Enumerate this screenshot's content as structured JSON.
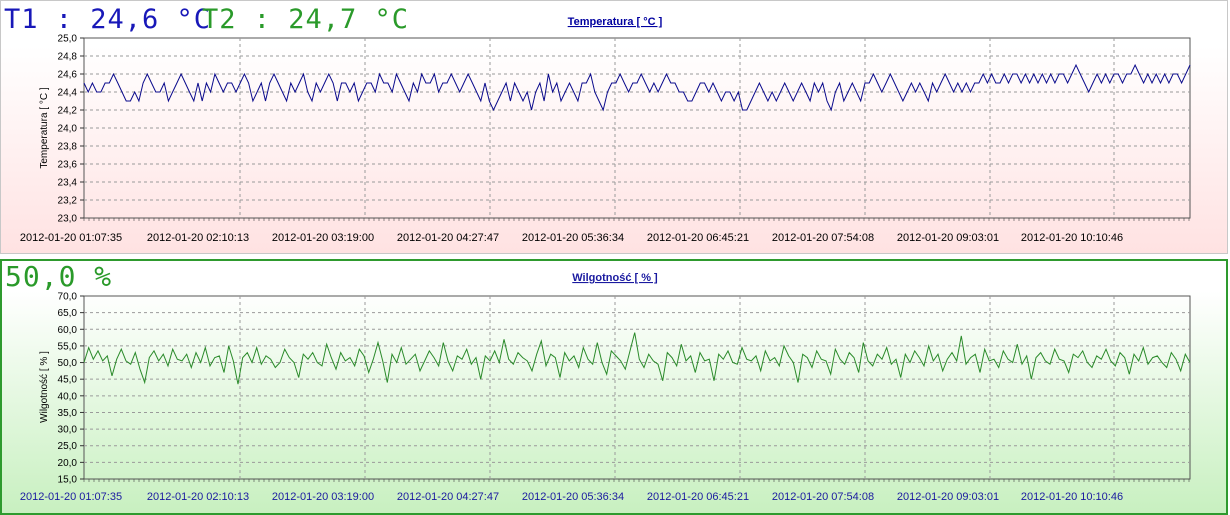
{
  "readouts": {
    "t1": "T1 : 24,6 °C",
    "t2": "T2 : 24,7 °C",
    "rh": "50,0 %"
  },
  "colors": {
    "t1": "#1818b8",
    "t2": "#2a9a2a",
    "humidity": "#2a9a2a",
    "temp_line": "#0a0a8c",
    "hum_line": "#2a8a2a",
    "temp_title": "#0000a0",
    "hum_title": "#1a1aa0",
    "temp_xticks": "#000000",
    "hum_xticks": "#1a1aa0"
  },
  "chart_data": [
    {
      "type": "line",
      "title": "Temperatura [ °C ]",
      "ylabel": "Temperatura [ °C ]",
      "xlabel": "",
      "ylim": [
        23.0,
        25.0
      ],
      "ytick_labels": [
        "25,0",
        "24,8",
        "24,6",
        "24,4",
        "24,2",
        "24,0",
        "23,8",
        "23,6",
        "23,4",
        "23,2",
        "23,0"
      ],
      "xtick_labels": [
        "2012-01-20 01:07:35",
        "2012-01-20 02:10:13",
        "2012-01-20 03:19:00",
        "2012-01-20 04:27:47",
        "2012-01-20 05:36:34",
        "2012-01-20 06:45:21",
        "2012-01-20 07:54:08",
        "2012-01-20 09:03:01",
        "2012-01-20 10:10:46"
      ],
      "grid": true,
      "series": [
        {
          "values": [
            24.5,
            24.4,
            24.5,
            24.4,
            24.4,
            24.5,
            24.5,
            24.6,
            24.5,
            24.4,
            24.3,
            24.3,
            24.4,
            24.3,
            24.5,
            24.6,
            24.5,
            24.4,
            24.4,
            24.5,
            24.3,
            24.4,
            24.5,
            24.6,
            24.5,
            24.4,
            24.3,
            24.5,
            24.3,
            24.5,
            24.4,
            24.6,
            24.5,
            24.4,
            24.5,
            24.5,
            24.4,
            24.5,
            24.6,
            24.5,
            24.3,
            24.4,
            24.5,
            24.3,
            24.5,
            24.6,
            24.5,
            24.4,
            24.3,
            24.5,
            24.4,
            24.5,
            24.6,
            24.4,
            24.3,
            24.5,
            24.4,
            24.5,
            24.6,
            24.5,
            24.3,
            24.5,
            24.5,
            24.4,
            24.5,
            24.3,
            24.4,
            24.5,
            24.5,
            24.4,
            24.6,
            24.5,
            24.5,
            24.4,
            24.6,
            24.5,
            24.4,
            24.3,
            24.5,
            24.4,
            24.6,
            24.5,
            24.5,
            24.6,
            24.4,
            24.5,
            24.5,
            24.6,
            24.5,
            24.4,
            24.5,
            24.6,
            24.5,
            24.4,
            24.3,
            24.5,
            24.3,
            24.2,
            24.3,
            24.4,
            24.5,
            24.3,
            24.5,
            24.4,
            24.3,
            24.4,
            24.2,
            24.4,
            24.5,
            24.3,
            24.6,
            24.4,
            24.5,
            24.3,
            24.4,
            24.5,
            24.4,
            24.3,
            24.5,
            24.5,
            24.6,
            24.4,
            24.3,
            24.2,
            24.4,
            24.5,
            24.5,
            24.6,
            24.5,
            24.4,
            24.5,
            24.5,
            24.6,
            24.5,
            24.4,
            24.5,
            24.4,
            24.5,
            24.6,
            24.5,
            24.5,
            24.4,
            24.4,
            24.3,
            24.3,
            24.4,
            24.5,
            24.5,
            24.4,
            24.5,
            24.4,
            24.3,
            24.4,
            24.4,
            24.3,
            24.4,
            24.2,
            24.2,
            24.3,
            24.4,
            24.5,
            24.4,
            24.3,
            24.4,
            24.3,
            24.4,
            24.5,
            24.4,
            24.3,
            24.4,
            24.5,
            24.4,
            24.3,
            24.5,
            24.4,
            24.5,
            24.3,
            24.2,
            24.4,
            24.5,
            24.3,
            24.4,
            24.5,
            24.4,
            24.3,
            24.5,
            24.5,
            24.6,
            24.5,
            24.4,
            24.5,
            24.6,
            24.5,
            24.4,
            24.3,
            24.4,
            24.5,
            24.4,
            24.5,
            24.4,
            24.3,
            24.5,
            24.4,
            24.5,
            24.6,
            24.5,
            24.4,
            24.5,
            24.4,
            24.5,
            24.4,
            24.5,
            24.5,
            24.6,
            24.5,
            24.6,
            24.5,
            24.5,
            24.6,
            24.5,
            24.6,
            24.6,
            24.5,
            24.6,
            24.5,
            24.6,
            24.5,
            24.6,
            24.5,
            24.6,
            24.5,
            24.6,
            24.6,
            24.5,
            24.6,
            24.7,
            24.6,
            24.5,
            24.4,
            24.5,
            24.6,
            24.5,
            24.6,
            24.5,
            24.6,
            24.6,
            24.5,
            24.6,
            24.6,
            24.7,
            24.6,
            24.5,
            24.6,
            24.5,
            24.6,
            24.5,
            24.6,
            24.5,
            24.6,
            24.6,
            24.5,
            24.6,
            24.7
          ]
        }
      ]
    },
    {
      "type": "line",
      "title": "Wilgotność [ % ]",
      "ylabel": "Wilgotność [ % ]",
      "xlabel": "",
      "ylim": [
        15.0,
        70.0
      ],
      "ytick_labels": [
        "70,0",
        "65,0",
        "60,0",
        "55,0",
        "50,0",
        "45,0",
        "40,0",
        "35,0",
        "30,0",
        "25,0",
        "20,0",
        "15,0"
      ],
      "xtick_labels": [
        "2012-01-20 01:07:35",
        "2012-01-20 02:10:13",
        "2012-01-20 03:19:00",
        "2012-01-20 04:27:47",
        "2012-01-20 05:36:34",
        "2012-01-20 06:45:21",
        "2012-01-20 07:54:08",
        "2012-01-20 09:03:01",
        "2012-01-20 10:10:46"
      ],
      "grid": true,
      "series": [
        {
          "values": [
            50.0,
            54.5,
            51.0,
            53.5,
            50.5,
            52.0,
            46.0,
            51.0,
            54.0,
            50.5,
            49.5,
            53.0,
            48.0,
            44.0,
            51.5,
            53.5,
            50.5,
            52.5,
            49.0,
            54.0,
            51.0,
            50.5,
            52.5,
            48.5,
            53.0,
            50.0,
            54.5,
            49.0,
            51.5,
            52.0,
            47.0,
            55.0,
            50.5,
            43.5,
            51.5,
            53.0,
            50.0,
            54.5,
            49.5,
            52.0,
            51.0,
            48.5,
            50.0,
            54.0,
            51.5,
            50.0,
            45.5,
            52.5,
            51.0,
            53.0,
            50.0,
            49.0,
            55.5,
            51.5,
            48.0,
            53.0,
            50.5,
            51.5,
            49.0,
            54.0,
            52.0,
            47.0,
            51.0,
            56.0,
            50.5,
            44.0,
            52.5,
            50.0,
            54.5,
            49.5,
            51.0,
            52.5,
            47.5,
            50.5,
            53.5,
            51.5,
            49.0,
            56.0,
            50.5,
            47.5,
            52.0,
            51.0,
            54.0,
            49.5,
            51.5,
            45.0,
            52.0,
            50.5,
            53.5,
            50.0,
            57.0,
            51.0,
            49.5,
            53.0,
            51.5,
            50.5,
            47.5,
            52.5,
            56.5,
            49.0,
            52.5,
            51.5,
            45.5,
            53.0,
            50.5,
            52.0,
            48.5,
            54.5,
            51.0,
            49.5,
            56.0,
            50.0,
            46.5,
            53.5,
            52.0,
            50.5,
            48.0,
            53.5,
            59.0,
            51.0,
            48.5,
            52.5,
            50.5,
            49.5,
            44.5,
            53.0,
            51.5,
            49.0,
            55.5,
            50.5,
            52.0,
            47.0,
            53.0,
            50.5,
            51.0,
            44.5,
            52.5,
            51.0,
            53.5,
            50.0,
            49.5,
            54.5,
            51.0,
            50.5,
            52.0,
            47.5,
            53.5,
            50.5,
            51.5,
            49.0,
            55.0,
            52.0,
            50.0,
            44.0,
            52.5,
            51.5,
            48.5,
            53.5,
            51.0,
            50.5,
            46.5,
            54.0,
            51.0,
            49.5,
            53.0,
            51.5,
            47.0,
            56.0,
            50.5,
            49.0,
            52.5,
            51.0,
            54.5,
            49.5,
            51.0,
            45.5,
            52.5,
            50.0,
            53.5,
            51.5,
            49.0,
            55.0,
            50.5,
            52.5,
            47.5,
            51.0,
            53.0,
            50.5,
            58.0,
            49.5,
            51.5,
            52.5,
            47.0,
            54.0,
            50.5,
            51.0,
            48.5,
            53.5,
            51.0,
            50.0,
            55.5,
            49.5,
            52.0,
            45.0,
            51.5,
            53.0,
            50.5,
            49.5,
            54.0,
            51.0,
            50.5,
            47.0,
            52.5,
            51.5,
            53.5,
            50.0,
            48.5,
            52.0,
            51.0,
            54.0,
            50.5,
            49.0,
            53.0,
            51.5,
            46.5,
            52.5,
            50.5,
            54.5,
            49.5,
            51.5,
            52.0,
            50.0,
            48.5,
            53.0,
            51.0,
            47.5,
            52.5,
            50.0
          ]
        }
      ]
    }
  ]
}
